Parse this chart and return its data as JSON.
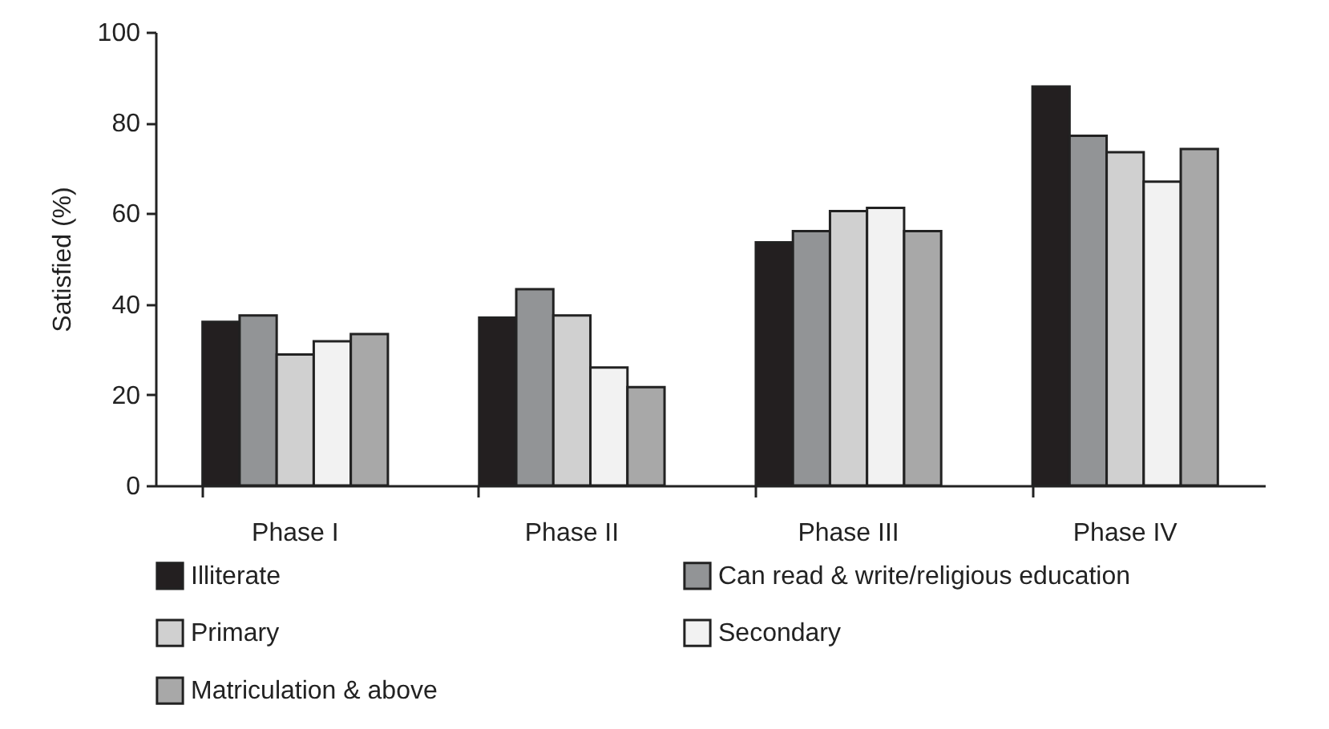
{
  "chart_data": {
    "type": "bar",
    "ylabel": "Satisfied (%)",
    "categories": [
      "Phase I",
      "Phase II",
      "Phase III",
      "Phase IV"
    ],
    "series": [
      {
        "name": "Illiterate",
        "color": "#231f20",
        "values": [
          36.1,
          37,
          53.6,
          88
        ]
      },
      {
        "name": "Can read & write/religious education",
        "color": "#929496",
        "values": [
          37.5,
          43.3,
          56.1,
          77.1
        ]
      },
      {
        "name": "Primary",
        "color": "#d0d0d0",
        "values": [
          28.9,
          37.5,
          60.5,
          73.5
        ]
      },
      {
        "name": "Secondary",
        "color": "#f2f2f2",
        "values": [
          31.8,
          26,
          61.2,
          67
        ]
      },
      {
        "name": "Matriculation & above",
        "color": "#a8a8a8",
        "values": [
          33.4,
          21.7,
          56.1,
          74.2
        ]
      }
    ],
    "ylim": [
      0,
      100
    ],
    "yticks": [
      0,
      20,
      40,
      60,
      80,
      100
    ],
    "grid": false,
    "legend": "bottom"
  }
}
